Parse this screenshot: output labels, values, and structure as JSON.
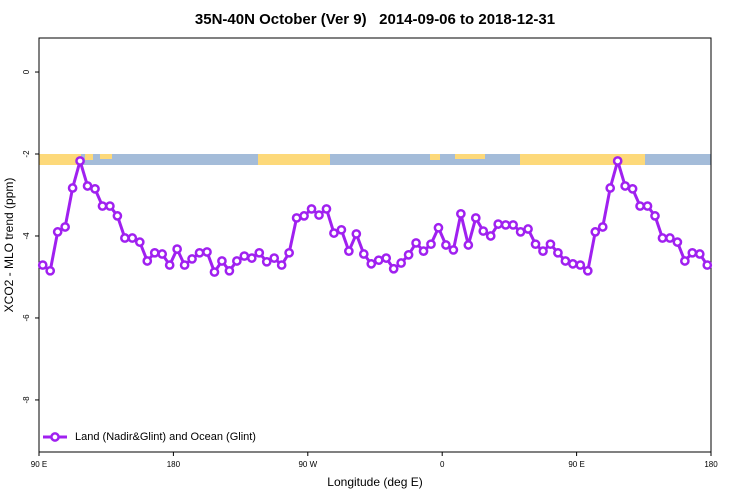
{
  "chart_data": {
    "type": "line",
    "title": "35N-40N October (Ver 9)   2014-09-06 to 2018-12-31",
    "x_label": "Longitude (deg E)",
    "y_label": "XCO2 - MLO trend (ppm)",
    "xlim": [
      90,
      540
    ],
    "xticks": [
      {
        "value": 90,
        "label": "90 E"
      },
      180,
      {
        "value": 270,
        "label": "90 W"
      },
      {
        "value": 360,
        "label": "0"
      },
      {
        "value": 450,
        "label": "90 E"
      },
      {
        "value": 540,
        "label": "180"
      }
    ],
    "ylim": [
      -9.27,
      0.83
    ],
    "yticks": [
      0,
      -2,
      -4,
      -6,
      -8
    ],
    "grid": false,
    "legend": "bottom-left",
    "x": [
      92.5,
      97.5,
      102.5,
      107.5,
      112.5,
      117.5,
      122.5,
      127.5,
      132.5,
      137.5,
      142.5,
      147.5,
      152.5,
      157.5,
      162.5,
      167.5,
      172.5,
      177.5,
      182.5,
      187.5,
      192.5,
      197.5,
      202.5,
      207.5,
      212.5,
      217.5,
      222.5,
      227.5,
      232.5,
      237.5,
      242.5,
      247.5,
      252.5,
      257.5,
      262.5,
      267.5,
      272.5,
      277.5,
      282.5,
      287.5,
      292.5,
      297.5,
      302.5,
      307.5,
      312.5,
      317.5,
      322.5,
      327.5,
      332.5,
      337.5,
      342.5,
      347.5,
      352.5,
      357.5,
      362.5,
      367.5,
      372.5,
      377.5,
      382.5,
      387.5,
      392.5,
      397.5,
      402.5,
      407.5,
      412.5,
      417.5,
      422.5,
      427.5,
      432.5,
      437.5,
      442.5,
      447.5,
      452.5,
      457.5,
      462.5,
      467.5,
      472.5,
      477.5,
      482.5,
      487.5,
      492.5,
      497.5,
      502.5,
      507.5,
      512.5,
      517.5,
      522.5,
      527.5,
      532.5,
      537.5
    ],
    "series": [
      {
        "name": "Land (Nadir&Glint) and Ocean (Glint)",
        "color": "#a020f0",
        "values": [
          -4.71,
          -4.85,
          -3.9,
          -3.78,
          -2.83,
          -2.17,
          -2.78,
          -2.85,
          -3.27,
          -3.27,
          -3.51,
          -4.05,
          -4.05,
          -4.15,
          -4.61,
          -4.41,
          -4.44,
          -4.71,
          -4.32,
          -4.71,
          -4.56,
          -4.41,
          -4.39,
          -4.88,
          -4.61,
          -4.85,
          -4.61,
          -4.49,
          -4.54,
          -4.41,
          -4.63,
          -4.54,
          -4.71,
          -4.41,
          -3.56,
          -3.51,
          -3.34,
          -3.49,
          -3.34,
          -3.93,
          -3.85,
          -4.37,
          -3.95,
          -4.44,
          -4.68,
          -4.59,
          -4.54,
          -4.8,
          -4.66,
          -4.46,
          -4.17,
          -4.37,
          -4.2,
          -3.8,
          -4.22,
          -4.34,
          -3.46,
          -4.22,
          -3.56,
          -3.88,
          -4.0,
          -3.71,
          -3.73,
          -3.73,
          -3.9,
          -3.83,
          -4.2,
          -4.37,
          -4.2,
          -4.41,
          -4.61,
          -4.68,
          -4.71,
          -4.85,
          -3.9,
          -3.78,
          -2.83,
          -2.17,
          -2.78,
          -2.85,
          -3.27,
          -3.27,
          -3.51,
          -4.05,
          -4.05,
          -4.15,
          -4.61,
          -4.41,
          -4.44,
          -4.71
        ]
      }
    ]
  }
}
